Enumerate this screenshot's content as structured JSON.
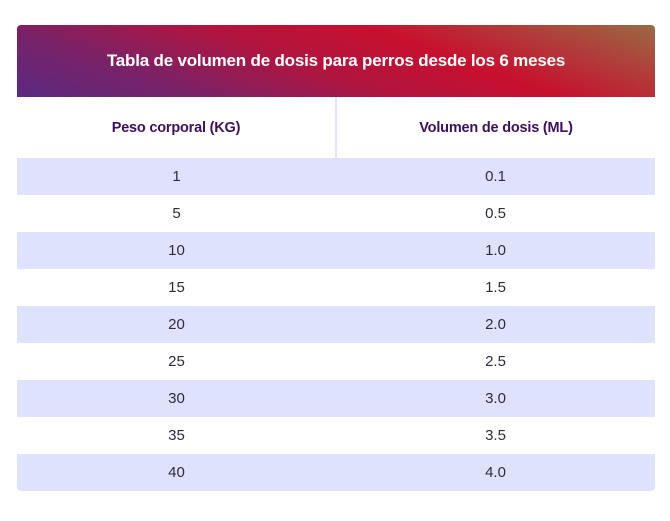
{
  "table": {
    "title": "Tabla de volumen de dosis para perros desde los 6 meses",
    "columns": [
      "Peso corporal (KG)",
      "Volumen de dosis (ML)"
    ],
    "rows": [
      [
        "1",
        "0.1"
      ],
      [
        "5",
        "0.5"
      ],
      [
        "10",
        "1.0"
      ],
      [
        "15",
        "1.5"
      ],
      [
        "20",
        "2.0"
      ],
      [
        "25",
        "2.5"
      ],
      [
        "30",
        "3.0"
      ],
      [
        "35",
        "3.5"
      ],
      [
        "40",
        "4.0"
      ]
    ]
  },
  "colors": {
    "gradient_start": "#5a2a82",
    "gradient_mid": "#c8102e",
    "gradient_end": "#9a6a45",
    "header_text": "#3d0f5e",
    "row_shade": "#dfe2fc"
  }
}
